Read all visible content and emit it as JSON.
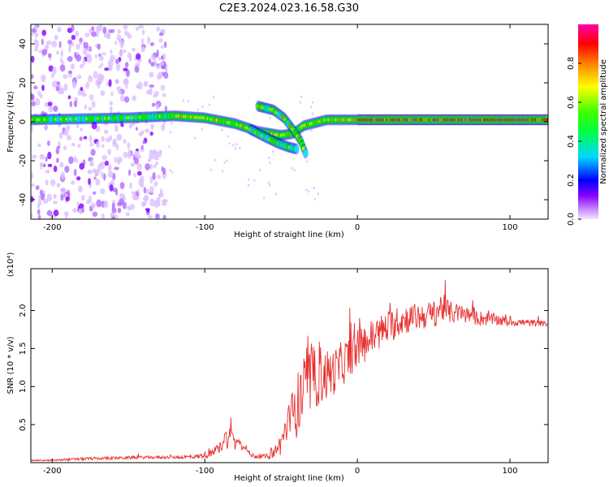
{
  "title": "C2E3.2024.023.16.58.G30",
  "chart_data": [
    {
      "type": "heatmap",
      "xlabel": "Height of straight line (km)",
      "ylabel": "Frequency (Hz)",
      "xlim": [
        -214,
        125
      ],
      "ylim": [
        -50,
        50
      ],
      "x_ticks": [
        -200,
        -100,
        0,
        100
      ],
      "x_tick_labels": [
        "-200",
        "-100",
        "0",
        "100"
      ],
      "y_ticks": [
        40,
        20,
        0,
        -20,
        -40
      ],
      "y_tick_labels": [
        "40",
        "20",
        "0",
        "-20",
        "-40"
      ],
      "colorbar": {
        "label": "Normalized spectral amplitude",
        "range": [
          0,
          1
        ],
        "ticks": [
          0.0,
          0.2,
          0.4,
          0.6,
          0.8
        ],
        "tick_labels": [
          "0.0",
          "0.2",
          "0.4",
          "0.6",
          "0.8"
        ],
        "colors": [
          "#e8c6ff",
          "#8800ff",
          "#0000ff",
          "#00e8ff",
          "#00ff00",
          "#ffff00",
          "#ff8800",
          "#ff0000",
          "#ff00aa"
        ]
      },
      "features": [
        {
          "name": "main_track",
          "x": [
            -214,
            -150,
            -120,
            -100,
            -80,
            -65,
            -50,
            -42,
            -35,
            -20,
            0,
            50,
            100,
            125
          ],
          "y": [
            1,
            2,
            3,
            2,
            -1,
            -5,
            -7,
            -6,
            -2,
            1,
            1,
            1,
            1,
            1
          ]
        },
        {
          "name": "upper_branch",
          "x": [
            -65,
            -55,
            -48,
            -42,
            -37,
            -34
          ],
          "y": [
            8,
            6,
            2,
            -4,
            -10,
            -16
          ]
        },
        {
          "name": "lower_branch",
          "x": [
            -70,
            -60,
            -52,
            -45,
            -40
          ],
          "y": [
            -4,
            -8,
            -11,
            -13,
            -14
          ]
        }
      ],
      "noise_regions": [
        {
          "x": [
            -214,
            -125
          ],
          "y": [
            -50,
            50
          ]
        }
      ]
    },
    {
      "type": "line",
      "xlabel": "Height of straight line (km)",
      "ylabel": "SNR (10 * v/v)",
      "y_multiplier": "(x10⁴)",
      "xlim": [
        -214,
        125
      ],
      "ylim": [
        0,
        2.55
      ],
      "x_ticks": [
        -200,
        -100,
        0,
        100
      ],
      "x_tick_labels": [
        "-200",
        "-100",
        "0",
        "100"
      ],
      "y_ticks": [
        0.5,
        1.0,
        1.5,
        2.0
      ],
      "y_tick_labels": [
        "0.5",
        "1.0",
        "1.5",
        "2.0"
      ],
      "series": [
        {
          "color": "#e83030",
          "x": [
            -214,
            -200,
            -180,
            -160,
            -140,
            -120,
            -105,
            -95,
            -90,
            -87,
            -85,
            -83,
            -80,
            -78,
            -76,
            -74,
            -72,
            -70,
            -65,
            -60,
            -55,
            -50,
            -47,
            -44,
            -41,
            -38,
            -35,
            -32,
            -28,
            -24,
            -20,
            -15,
            -10,
            -5,
            0,
            10,
            20,
            30,
            40,
            50,
            55,
            60,
            70,
            80,
            90,
            100,
            110,
            120,
            125
          ],
          "y": [
            0.03,
            0.03,
            0.05,
            0.06,
            0.07,
            0.07,
            0.08,
            0.12,
            0.2,
            0.35,
            0.28,
            0.4,
            0.22,
            0.38,
            0.2,
            0.25,
            0.15,
            0.1,
            0.08,
            0.08,
            0.12,
            0.25,
            0.45,
            0.55,
            0.7,
            0.8,
            0.95,
            1.05,
            1.1,
            1.15,
            1.15,
            1.2,
            1.3,
            1.4,
            1.5,
            1.65,
            1.78,
            1.88,
            1.92,
            1.95,
            2.05,
            1.98,
            1.95,
            1.9,
            1.88,
            1.85,
            1.84,
            1.83,
            1.82
          ],
          "spread": [
            0.01,
            0.01,
            0.02,
            0.02,
            0.02,
            0.02,
            0.03,
            0.05,
            0.08,
            0.15,
            0.1,
            0.12,
            0.08,
            0.1,
            0.06,
            0.06,
            0.04,
            0.03,
            0.03,
            0.03,
            0.08,
            0.15,
            0.2,
            0.3,
            0.4,
            0.45,
            0.45,
            0.45,
            0.4,
            0.4,
            0.35,
            0.3,
            0.3,
            0.28,
            0.25,
            0.25,
            0.22,
            0.2,
            0.18,
            0.18,
            0.2,
            0.15,
            0.12,
            0.1,
            0.08,
            0.06,
            0.05,
            0.04,
            0.03
          ]
        }
      ]
    }
  ]
}
